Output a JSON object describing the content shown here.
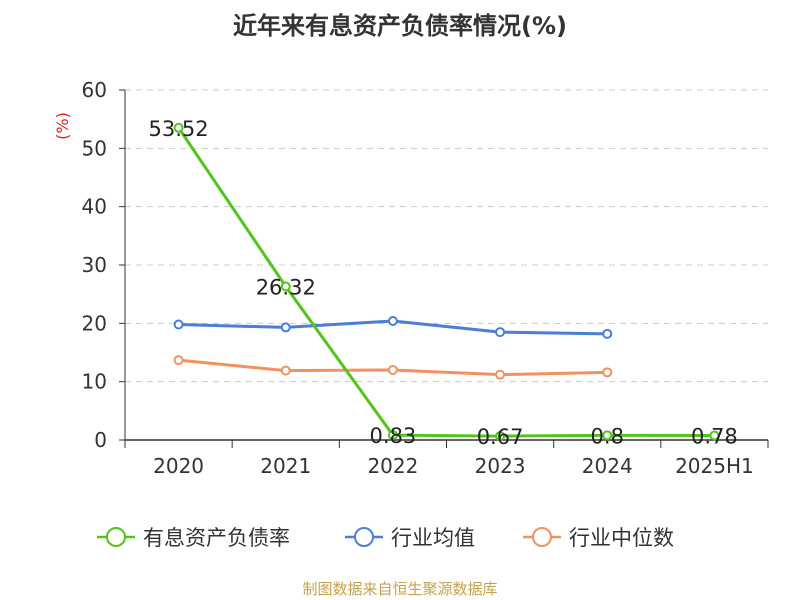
{
  "source": "制图数据来自恒生聚源数据库",
  "chart_data": {
    "type": "line",
    "title": "近年来有息资产负债率情况(%)",
    "ylabel": "(%)",
    "xlabel": "",
    "categories": [
      "2020",
      "2021",
      "2022",
      "2023",
      "2024",
      "2025H1"
    ],
    "ylim": [
      0,
      60
    ],
    "yticks": [
      "0",
      "10",
      "20",
      "30",
      "40",
      "50",
      "60"
    ],
    "grid": true,
    "legend_position": "bottom",
    "series": [
      {
        "name": "有息资产负债率",
        "color": "#52c41a",
        "values": [
          53.52,
          26.32,
          0.83,
          0.67,
          0.8,
          0.78
        ],
        "labels": [
          "53.52",
          "26.32",
          "0.83",
          "0.67",
          "0.8",
          "0.78"
        ]
      },
      {
        "name": "行业均值",
        "color": "#4a7fd8",
        "values": [
          19.8,
          19.3,
          20.4,
          18.5,
          18.2,
          null
        ]
      },
      {
        "name": "行业中位数",
        "color": "#f39160",
        "values": [
          13.7,
          11.9,
          12.0,
          11.2,
          11.6,
          null
        ]
      }
    ]
  }
}
